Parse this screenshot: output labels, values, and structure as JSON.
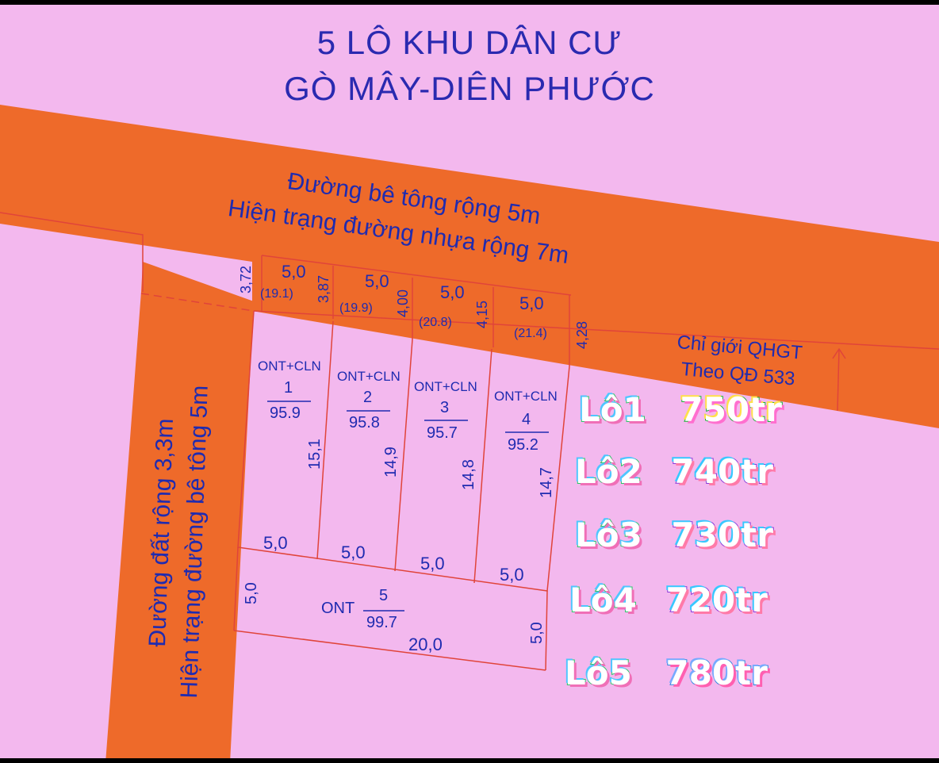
{
  "title": {
    "line1": "5 LÔ KHU DÂN CƯ",
    "line2": "GÒ MÂY-DIÊN PHƯỚC"
  },
  "roads": {
    "main_line1": "Đường bê tông rộng 5m",
    "main_line2": "Hiện trạng đường nhựa rộng 7m",
    "side_line1": "Đường đất rộng 3,3m",
    "side_line2": "Hiện trạng đường bê tông 5m",
    "boundary_line1": "Chỉ giới QHGT",
    "boundary_line2": "Theo QĐ 533"
  },
  "lots": [
    {
      "use": "ONT+CLN",
      "number": "1",
      "area": "95.9",
      "depth": "15,1",
      "front": "5,0",
      "back": "5,0",
      "dist": "(19.1)"
    },
    {
      "use": "ONT+CLN",
      "number": "2",
      "area": "95.8",
      "depth": "14,9",
      "front": "5,0",
      "back": "5,0",
      "dist": "(19.9)"
    },
    {
      "use": "ONT+CLN",
      "number": "3",
      "area": "95.7",
      "depth": "14,8",
      "front": "5,0",
      "back": "5,0",
      "dist": "(20.8)"
    },
    {
      "use": "ONT+CLN",
      "number": "4",
      "area": "95.2",
      "depth": "14,7",
      "front": "5,0",
      "back": "5,0",
      "dist": "(21.4)"
    },
    {
      "use": "ONT",
      "number": "5",
      "area": "99.7",
      "length": "20,0",
      "left": "5,0",
      "right": "5,0"
    }
  ],
  "setbacks": [
    "3,72",
    "3,87",
    "4,00",
    "4,15",
    "4,28"
  ],
  "prices": [
    {
      "name": "Lô1",
      "price": "750tr"
    },
    {
      "name": "Lô2",
      "price": "740tr"
    },
    {
      "name": "Lô3",
      "price": "730tr"
    },
    {
      "name": "Lô4",
      "price": "720tr"
    },
    {
      "name": "Lô5",
      "price": "780tr"
    }
  ],
  "colors": {
    "background": "#f3b8ee",
    "road": "#ee6a2a",
    "text": "#1f2bb0",
    "lines": "#e0443a"
  }
}
